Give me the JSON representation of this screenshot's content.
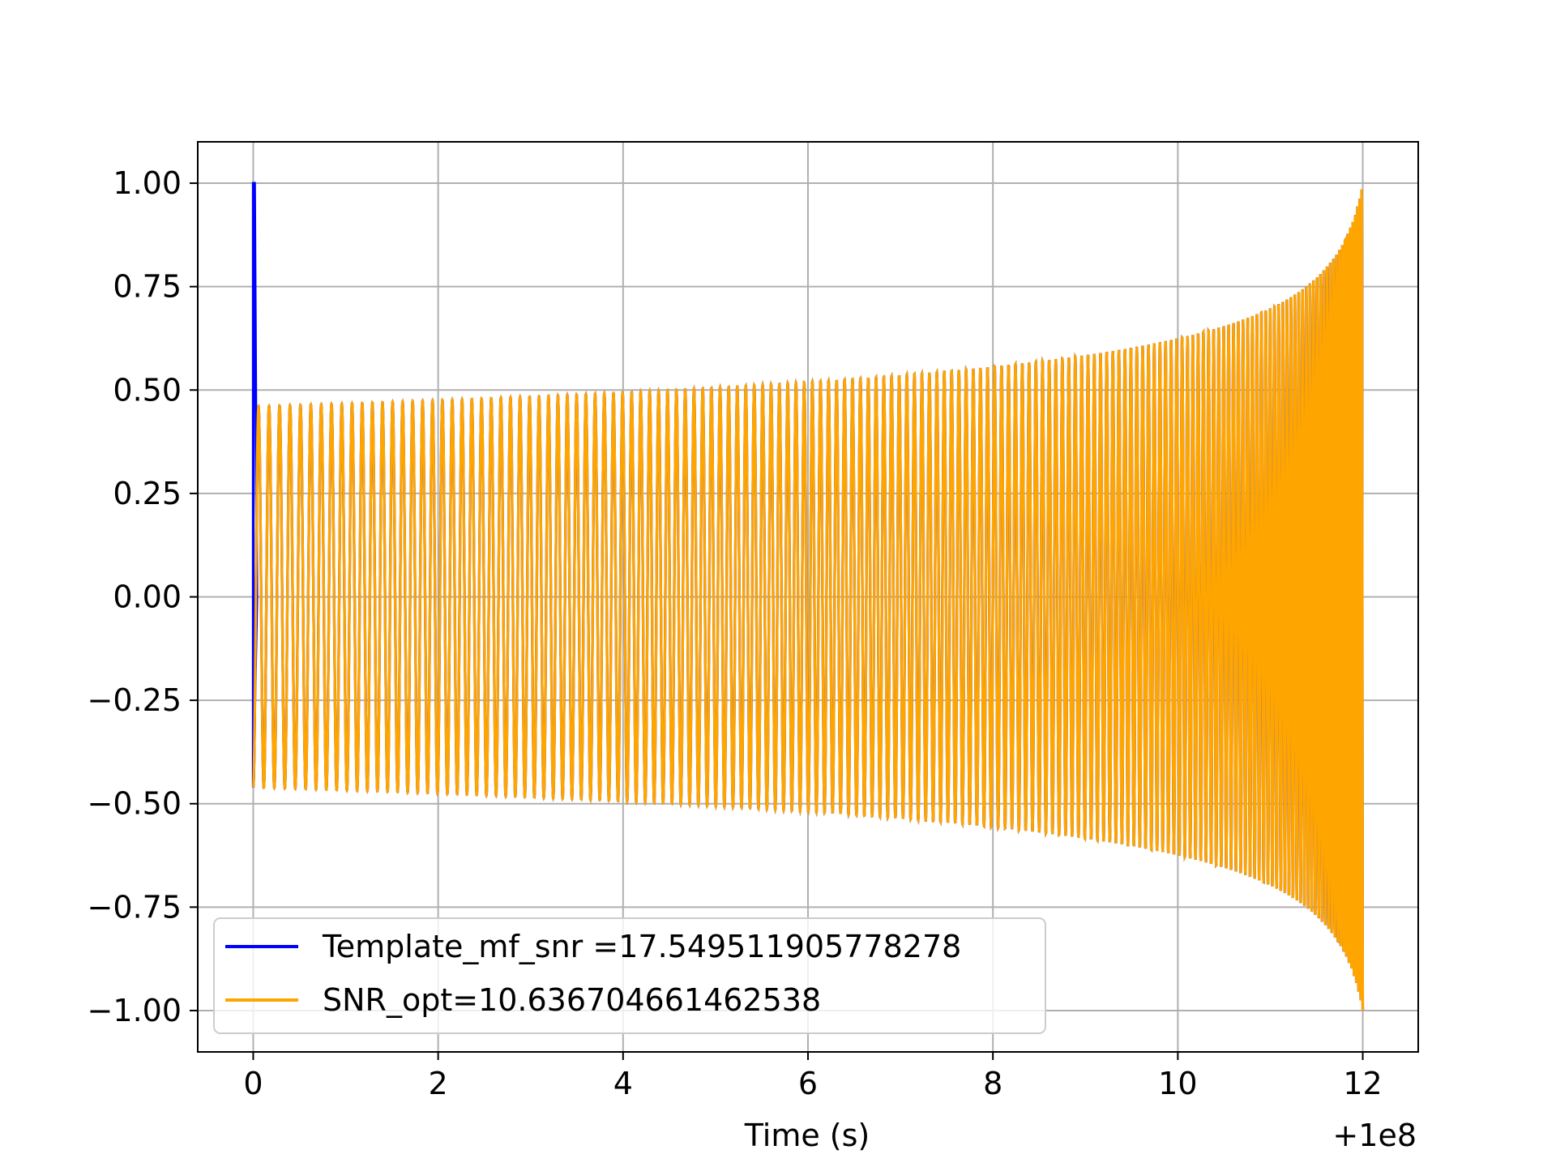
{
  "chart_data": {
    "type": "line",
    "title": "",
    "xlabel": "Time (s)",
    "ylabel": "",
    "x_offset_label": "+1e8",
    "xlim": [
      -0.6,
      12.6
    ],
    "ylim": [
      -1.1,
      1.1
    ],
    "x_ticks": [
      0,
      2,
      4,
      6,
      8,
      10,
      12
    ],
    "x_tick_labels": [
      "0",
      "2",
      "4",
      "6",
      "8",
      "10",
      "12"
    ],
    "y_ticks": [
      1.0,
      0.75,
      0.5,
      0.25,
      0.0,
      -0.25,
      -0.5,
      -0.75,
      -1.0
    ],
    "y_tick_labels": [
      "1.00",
      "0.75",
      "0.50",
      "0.25",
      "0.00",
      "−0.25",
      "−0.50",
      "−0.75",
      "−1.00"
    ],
    "grid": true,
    "legend_position": "lower-left",
    "chirp": {
      "t_start": 0.0,
      "t_end": 12.0,
      "start_amplitude": 0.46,
      "end_amplitude": 1.0,
      "cycles": 160
    },
    "series": [
      {
        "name": "Template_mf_snr =17.549511905778278",
        "color": "#0000ff",
        "description_points": [
          {
            "x": 0.0,
            "y": 1.0
          },
          {
            "x": 0.02,
            "y": 0.46
          },
          {
            "x": 12.0,
            "y": 1.0
          }
        ]
      },
      {
        "name": "SNR_opt=10.636704661462538",
        "color": "#ffa500",
        "description_points": [
          {
            "x": 0.0,
            "y": -0.46
          },
          {
            "x": 6.0,
            "y": 0.55
          },
          {
            "x": 12.0,
            "y": 1.0
          }
        ]
      }
    ]
  }
}
